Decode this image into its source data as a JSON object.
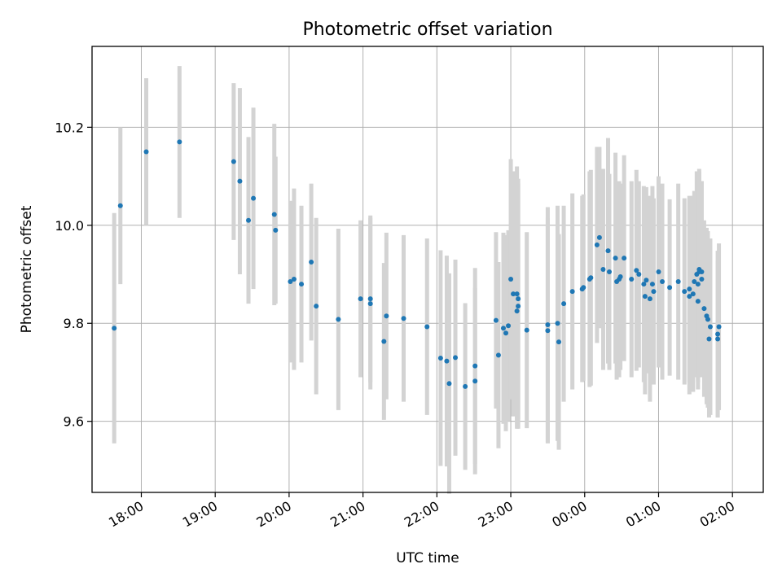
{
  "chart_data": {
    "type": "scatter",
    "title": "Photometric offset variation",
    "xlabel": "UTC time",
    "ylabel": "Photometric offset",
    "xlim": [
      "17:20",
      "02:25"
    ],
    "ylim": [
      9.455,
      10.365
    ],
    "grid": true,
    "x_ticks": [
      "18:00",
      "19:00",
      "20:00",
      "21:00",
      "22:00",
      "23:00",
      "00:00",
      "01:00",
      "02:00"
    ],
    "y_ticks": [
      "9.6",
      "9.8",
      "10.0",
      "10.2"
    ],
    "colors": {
      "point": "#1f77b4",
      "errorbar": "#d3d3d3",
      "grid": "#b0b0b0"
    },
    "series": [
      {
        "x": [
          "17:38",
          "17:43",
          "18:04",
          "18:31",
          "19:15",
          "19:20",
          "19:27",
          "19:31",
          "19:48",
          "19:49",
          "20:01",
          "20:04",
          "20:10",
          "20:18",
          "20:22",
          "20:40",
          "20:58",
          "21:06",
          "21:06",
          "21:17",
          "21:19",
          "21:33",
          "21:52",
          "22:03",
          "22:08",
          "22:10",
          "22:15",
          "22:23",
          "22:31",
          "22:31",
          "22:48",
          "22:50",
          "22:54",
          "22:56",
          "22:58",
          "23:00",
          "23:02",
          "23:05",
          "23:05",
          "23:06",
          "23:06",
          "23:13",
          "23:30",
          "23:30",
          "23:38",
          "23:39",
          "23:43",
          "23:50",
          "23:58",
          "23:59",
          "00:04",
          "00:05",
          "00:10",
          "00:12",
          "00:15",
          "00:19",
          "00:20",
          "00:25",
          "00:26",
          "00:28",
          "00:29",
          "00:32",
          "00:38",
          "00:42",
          "00:44",
          "00:48",
          "00:49",
          "00:50",
          "00:53",
          "00:55",
          "00:56",
          "01:00",
          "01:03",
          "01:09",
          "01:16",
          "01:21",
          "01:25",
          "01:25",
          "01:28",
          "01:29",
          "01:31",
          "01:32",
          "01:32",
          "01:33",
          "01:33",
          "01:35",
          "01:35",
          "01:37",
          "01:39",
          "01:40",
          "01:41",
          "01:42",
          "01:48",
          "01:48",
          "01:49"
        ],
        "y": [
          9.79,
          10.04,
          10.15,
          10.17,
          10.13,
          10.09,
          10.01,
          10.055,
          10.022,
          9.99,
          9.885,
          9.89,
          9.88,
          9.925,
          9.835,
          9.808,
          9.85,
          9.84,
          9.85,
          9.763,
          9.815,
          9.81,
          9.793,
          9.729,
          9.723,
          9.677,
          9.73,
          9.671,
          9.713,
          9.682,
          9.806,
          9.735,
          9.79,
          9.78,
          9.795,
          9.89,
          9.86,
          9.86,
          9.825,
          9.835,
          9.85,
          9.786,
          9.785,
          9.797,
          9.8,
          9.762,
          9.84,
          9.865,
          9.87,
          9.873,
          9.89,
          9.893,
          9.96,
          9.975,
          9.91,
          9.948,
          9.905,
          9.933,
          9.885,
          9.89,
          9.895,
          9.933,
          9.89,
          9.908,
          9.9,
          9.88,
          9.855,
          9.888,
          9.85,
          9.88,
          9.865,
          9.905,
          9.885,
          9.873,
          9.885,
          9.865,
          9.855,
          9.87,
          9.86,
          9.885,
          9.9,
          9.88,
          9.845,
          9.905,
          9.91,
          9.89,
          9.905,
          9.83,
          9.815,
          9.808,
          9.768,
          9.793,
          9.778,
          9.768,
          9.793
        ],
        "err": [
          0.235,
          0.16,
          0.15,
          0.155,
          0.16,
          0.19,
          0.17,
          0.185,
          0.185,
          0.15,
          0.165,
          0.185,
          0.16,
          0.16,
          0.18,
          0.185,
          0.16,
          0.175,
          0.17,
          0.16,
          0.17,
          0.17,
          0.18,
          0.22,
          0.215,
          0.225,
          0.2,
          0.17,
          0.2,
          0.19,
          0.18,
          0.19,
          0.195,
          0.2,
          0.195,
          0.245,
          0.25,
          0.26,
          0.24,
          0.25,
          0.245,
          0.2,
          0.23,
          0.24,
          0.24,
          0.22,
          0.2,
          0.2,
          0.19,
          0.19,
          0.22,
          0.22,
          0.2,
          0.185,
          0.205,
          0.23,
          0.2,
          0.215,
          0.2,
          0.2,
          0.19,
          0.21,
          0.2,
          0.205,
          0.19,
          0.2,
          0.2,
          0.19,
          0.21,
          0.2,
          0.19,
          0.195,
          0.2,
          0.18,
          0.2,
          0.19,
          0.2,
          0.19,
          0.2,
          0.185,
          0.21,
          0.2,
          0.18,
          0.21,
          0.2,
          0.2,
          0.185,
          0.18,
          0.18,
          0.18,
          0.16,
          0.18,
          0.17,
          0.16,
          0.17
        ]
      }
    ]
  }
}
